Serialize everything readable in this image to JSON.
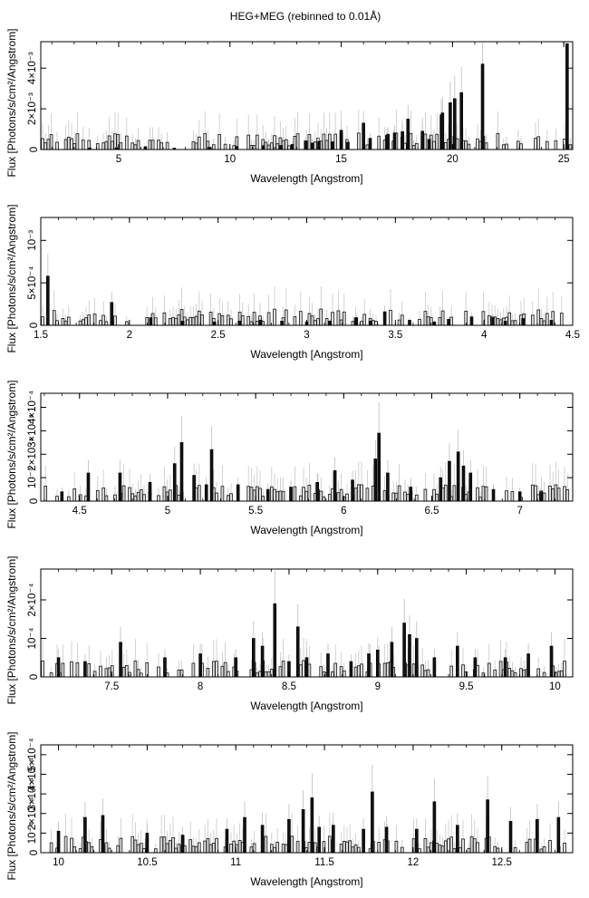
{
  "page": {
    "title": "HEG+MEG (rebinned to 0.01Å)"
  },
  "chart_data": [
    {
      "type": "bar",
      "xlabel": "Wavelength [Angstrom]",
      "ylabel": "Flux [Photons/s/cm²/Angstrom]",
      "xlim": [
        1.5,
        25.4
      ],
      "ylim": [
        0,
        0.0053
      ],
      "xticks": [
        5,
        10,
        15,
        20,
        25
      ],
      "yticks": [
        {
          "v": 0.002,
          "label": "2×10⁻³"
        },
        {
          "v": 0.004,
          "label": "4×10⁻³"
        }
      ],
      "x": [
        3.7,
        4.9,
        6.2,
        7.5,
        9.1,
        10.3,
        11.5,
        12.3,
        12.8,
        13.4,
        13.7,
        14.0,
        14.6,
        15.0,
        15.3,
        16.0,
        16.3,
        17.05,
        17.1,
        17.4,
        17.75,
        18.0,
        18.65,
        18.95,
        19.5,
        19.55,
        19.9,
        20.1,
        20.4,
        21.35,
        25.15
      ],
      "values": [
        8e-05,
        9e-05,
        0.00014,
        7e-05,
        0.00011,
        0.00015,
        0.00019,
        0.0002,
        0.00025,
        0.00043,
        0.00032,
        0.0004,
        0.00038,
        0.00095,
        0.00036,
        0.0013,
        0.00055,
        0.0007,
        0.00075,
        0.00082,
        0.00088,
        0.0015,
        0.0009,
        0.0005,
        0.0017,
        0.0018,
        0.0023,
        0.0025,
        0.0028,
        0.0042,
        0.0052
      ]
    },
    {
      "type": "bar",
      "xlabel": "Wavelength [Angstrom]",
      "ylabel": "Flux [Photons/s/cm²/Angstrom]",
      "xlim": [
        1.5,
        4.5
      ],
      "ylim": [
        0,
        0.00127
      ],
      "xticks": [
        1.5,
        2,
        2.5,
        3,
        3.5,
        4,
        4.5
      ],
      "yticks": [
        {
          "v": 0.0005,
          "label": "5×10⁻⁴"
        },
        {
          "v": 0.001,
          "label": "10⁻³"
        }
      ],
      "x": [
        1.54,
        1.9,
        2.12,
        2.3,
        2.48,
        2.62,
        2.74,
        2.86,
        3.0,
        3.13,
        3.28,
        3.36,
        3.44,
        3.58,
        3.72,
        3.8,
        3.93,
        4.05,
        4.12,
        4.22,
        4.38
      ],
      "values": [
        0.00058,
        0.00027,
        9e-05,
        5e-05,
        4e-05,
        5e-05,
        6e-05,
        5e-05,
        4e-05,
        5e-05,
        9e-05,
        5e-05,
        0.00016,
        6e-05,
        4e-05,
        7e-05,
        0.0001,
        9e-05,
        5e-05,
        8e-05,
        6e-05
      ]
    },
    {
      "type": "bar",
      "xlabel": "Wavelength [Angstrom]",
      "ylabel": "Flux [Photons/s/cm²/Angstrom]",
      "xlim": [
        4.28,
        7.3
      ],
      "ylim": [
        0,
        0.00046
      ],
      "xticks": [
        4.5,
        5,
        5.5,
        6,
        6.5,
        7
      ],
      "yticks": [
        {
          "v": 0.0001,
          "label": "10⁻⁴"
        },
        {
          "v": 0.0002,
          "label": "2×10⁻⁴"
        },
        {
          "v": 0.0003,
          "label": "3×10⁻⁴"
        },
        {
          "v": 0.0004,
          "label": "4×10⁻⁴"
        }
      ],
      "x": [
        4.4,
        4.55,
        4.73,
        4.9,
        5.04,
        5.08,
        5.15,
        5.22,
        5.25,
        5.4,
        5.57,
        5.7,
        5.85,
        5.95,
        6.05,
        6.18,
        6.2,
        6.25,
        6.38,
        6.55,
        6.6,
        6.65,
        6.68,
        6.72,
        6.85,
        7.0,
        7.12
      ],
      "values": [
        4e-05,
        0.00012,
        0.00012,
        8e-05,
        0.00016,
        0.00025,
        0.00011,
        7e-05,
        0.00022,
        7e-05,
        5e-05,
        6e-05,
        8e-05,
        0.00013,
        9e-05,
        0.00018,
        0.00029,
        0.00012,
        6e-05,
        0.0001,
        0.00017,
        0.00021,
        0.00015,
        0.00012,
        5e-05,
        4e-05,
        4e-05
      ]
    },
    {
      "type": "bar",
      "xlabel": "Wavelength [Angstrom]",
      "ylabel": "Flux [Photons/s/cm²/Angstrom]",
      "xlim": [
        7.1,
        10.1
      ],
      "ylim": [
        0,
        0.00028
      ],
      "xticks": [
        7.5,
        8,
        8.5,
        9,
        9.5,
        10
      ],
      "yticks": [
        {
          "v": 0.0001,
          "label": "10⁻⁴"
        },
        {
          "v": 0.0002,
          "label": "2×10⁻⁴"
        }
      ],
      "x": [
        7.2,
        7.35,
        7.55,
        7.8,
        8.0,
        8.2,
        8.3,
        8.35,
        8.42,
        8.5,
        8.55,
        8.6,
        8.72,
        8.85,
        8.95,
        9.0,
        9.08,
        9.15,
        9.18,
        9.22,
        9.32,
        9.45,
        9.55,
        9.72,
        9.85,
        9.98
      ],
      "values": [
        5e-05,
        4e-05,
        9e-05,
        5e-05,
        6e-05,
        5e-05,
        0.0001,
        8e-05,
        0.00019,
        4e-05,
        0.00013,
        5e-05,
        6e-05,
        4e-05,
        6e-05,
        7e-05,
        9e-05,
        0.00014,
        0.00011,
        0.0001,
        5e-05,
        8e-05,
        5e-05,
        5e-05,
        6e-05,
        8e-05
      ]
    },
    {
      "type": "bar",
      "xlabel": "Wavelength [Angstrom]",
      "ylabel": "Flux [Photons/s/cm²/Angstrom]",
      "xlim": [
        9.9,
        12.9
      ],
      "ylim": [
        0,
        0.00055
      ],
      "xticks": [
        10,
        10.5,
        11,
        11.5,
        12,
        12.5
      ],
      "yticks": [
        {
          "v": 0.0001,
          "label": "10⁻⁴"
        },
        {
          "v": 0.0002,
          "label": "2×10⁻⁴"
        },
        {
          "v": 0.0003,
          "label": "3×10⁻⁴"
        },
        {
          "v": 0.0004,
          "label": "4×10⁻⁴"
        },
        {
          "v": 0.0005,
          "label": "5×10⁻⁴"
        }
      ],
      "x": [
        10.0,
        10.15,
        10.25,
        10.5,
        10.7,
        10.95,
        11.05,
        11.15,
        11.3,
        11.38,
        11.43,
        11.47,
        11.55,
        11.72,
        11.77,
        11.85,
        12.02,
        12.12,
        12.25,
        12.42,
        12.55,
        12.7,
        12.82
      ],
      "values": [
        0.00011,
        0.00018,
        0.00019,
        0.0001,
        9e-05,
        0.00012,
        0.00018,
        0.00014,
        0.00017,
        0.00022,
        0.00028,
        0.00013,
        0.00014,
        0.00012,
        0.00031,
        0.00013,
        0.00012,
        0.00026,
        0.00014,
        0.00027,
        0.00016,
        0.00017,
        0.00018
      ]
    }
  ]
}
